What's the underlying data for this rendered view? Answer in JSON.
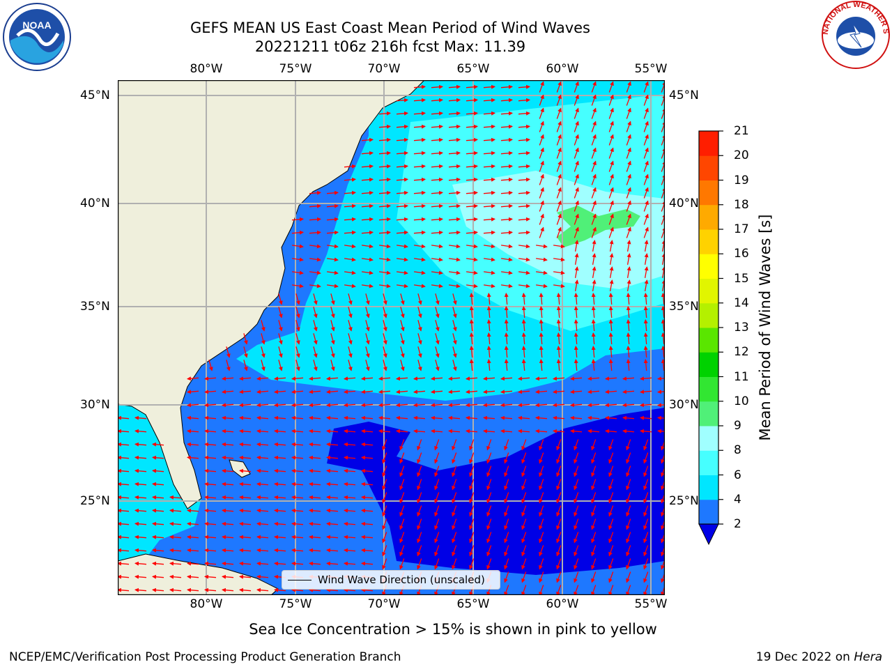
{
  "title_line1": "GEFS MEAN US East Coast Mean Period of Wind Waves",
  "title_line2": "20221211 t06z 216h fcst   Max: 11.39",
  "lon_labels": [
    "80°W",
    "75°W",
    "70°W",
    "65°W",
    "60°W",
    "55°W"
  ],
  "lat_labels": [
    "45°N",
    "40°N",
    "35°N",
    "30°N",
    "25°N"
  ],
  "legend_label": "Wind Wave Direction (unscaled)",
  "colorbar": {
    "label": "Mean Period of Wind Waves [s]",
    "ticks": [
      "2",
      "4",
      "6",
      "8",
      "9",
      "10",
      "11",
      "12",
      "13",
      "14",
      "15",
      "16",
      "17",
      "18",
      "19",
      "20",
      "21"
    ],
    "colors": [
      "#0000e6",
      "#1e78ff",
      "#00e6ff",
      "#46ffff",
      "#a0ffff",
      "#50f078",
      "#32e632",
      "#00d200",
      "#5ae600",
      "#b4f000",
      "#e1f500",
      "#ffff00",
      "#ffd200",
      "#ffaa00",
      "#ff7800",
      "#ff4600",
      "#ff1e00",
      "#ff0000"
    ]
  },
  "caption": "Sea Ice Concentration > 15% is shown in pink to yellow",
  "footer_left": "NCEP/EMC/Verification Post Processing Product Generation Branch",
  "footer_right_date": "19 Dec 2022 on",
  "footer_right_host": "Hera",
  "logos": {
    "left": "noaa-logo",
    "right": "nws-logo",
    "noaa_text": "NOAA",
    "nws_text": "NATIONAL WEATHER SERVICE"
  },
  "colors": {
    "land": "#efefdc",
    "dark_blue": "#0000e6",
    "mid_blue": "#1e78ff",
    "cyan": "#00e6ff",
    "light_cyan": "#46ffff",
    "pale_cyan": "#a0ffff",
    "green": "#50f078",
    "arrow": "#ff0000"
  }
}
